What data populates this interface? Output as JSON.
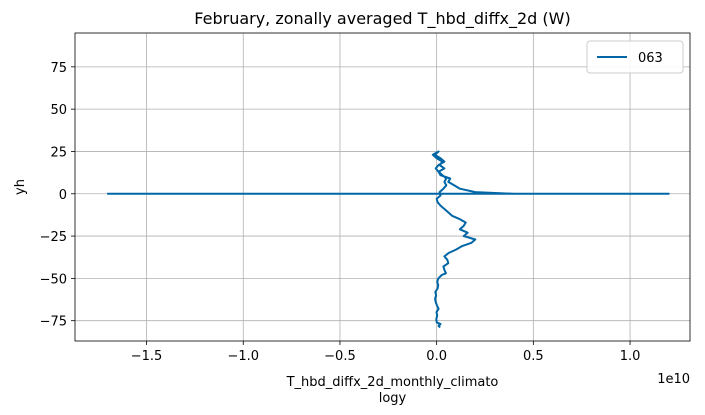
{
  "chart_data": {
    "type": "line",
    "title": "February, zonally averaged T_hbd_diffx_2d (W)",
    "xlabel": "T_hbd_diffx_2d_monthly_climato",
    "xlabel_line2": "logy",
    "ylabel": "yh",
    "x_offset_text": "1e10",
    "x_unit_scale": 10000000000,
    "xlim": [
      -18700000000.0,
      13100000000.0
    ],
    "ylim": [
      -87,
      95
    ],
    "xticks": [
      -15000000000.0,
      -10000000000.0,
      -5000000000.0,
      0,
      5000000000.0,
      10000000000.0
    ],
    "xtick_labels": [
      "−1.5",
      "−1.0",
      "−0.5",
      "0.0",
      "0.5",
      "1.0"
    ],
    "yticks": [
      -75,
      -50,
      -25,
      0,
      25,
      50,
      75
    ],
    "ytick_labels": [
      "−75",
      "−50",
      "−25",
      "0",
      "25",
      "50",
      "75"
    ],
    "grid": true,
    "legend_position": "top-right",
    "series": [
      {
        "name": "063",
        "color": "#0066a6",
        "x": [
          180000000.0,
          100000000.0,
          200000000.0,
          0.0,
          -20000000.0,
          30000000.0,
          -10000000.0,
          100000000.0,
          20000000.0,
          -50000000.0,
          -80000000.0,
          -30000000.0,
          -70000000.0,
          50000000.0,
          80000000.0,
          30000000.0,
          90000000.0,
          260000000.0,
          480000000.0,
          400000000.0,
          350000000.0,
          600000000.0,
          550000000.0,
          400000000.0,
          620000000.0,
          1000000000.0,
          1300000000.0,
          1800000000.0,
          2000000000.0,
          1400000000.0,
          1600000000.0,
          1200000000.0,
          1400000000.0,
          1500000000.0,
          1200000000.0,
          800000000.0,
          600000000.0,
          400000000.0,
          200000000.0,
          50000000.0,
          0.0,
          200000000.0,
          150000000.0,
          350000000.0,
          500000000.0,
          400000000.0,
          500000000.0,
          300000000.0,
          100000000.0,
          -50000000.0,
          100000000.0,
          400000000.0,
          200000000.0,
          -100000000.0,
          100000000.0,
          -200000000.0,
          0.0,
          300000000.0,
          150000000.0,
          400000000.0,
          100000000.0,
          200000000.0,
          700000000.0,
          600000000.0,
          900000000.0,
          1200000000.0,
          2000000000.0,
          4000000000.0,
          9000000000.0,
          11000000000.0,
          12000000000.0,
          3000000000.0,
          -17000000000.0,
          -15000000000.0,
          -10000000000.0,
          -10400000000.0,
          -11500000000.0,
          -10000000000.0,
          -10500000000.0,
          -11500000000.0,
          -9000000000.0,
          -8800000000.0,
          -7500000000.0,
          -7200000000.0,
          -9000000000.0,
          -7000000000.0,
          -8000000000.0,
          -9000000000.0,
          -10500000000.0,
          -12500000000.0,
          -6500000000.0,
          -8000000000.0,
          -8000000000.0,
          -10000000000.0,
          -8000000000.0,
          -6500000000.0,
          -9500000000.0,
          -9000000000.0,
          -10500000000.0,
          -6000000000.0,
          -5000000000.0,
          -3000000000.0,
          -500000000.0,
          0.0,
          -50000000.0,
          0.0,
          0.0
        ],
        "y": [
          -79,
          -78,
          -77,
          -76,
          -74,
          -72,
          -70,
          -68,
          -66,
          -64,
          -62,
          -60,
          -58,
          -56,
          -54,
          -52,
          -50,
          -48,
          -47,
          -45,
          -43,
          -41,
          -39,
          -37,
          -35,
          -33,
          -31,
          -29,
          -27,
          -25,
          -23,
          -21,
          -19,
          -17,
          -15,
          -13,
          -11,
          -9,
          -7,
          -5,
          -3,
          -1,
          1,
          3,
          5,
          7,
          9,
          11,
          13,
          15,
          17,
          19,
          21,
          23,
          25,
          23,
          21,
          19,
          17,
          15,
          13,
          11,
          9,
          7,
          5,
          3,
          1,
          0,
          0,
          0,
          0,
          0,
          0,
          0,
          0,
          0,
          0,
          0,
          0,
          0,
          0,
          0,
          0,
          0,
          0,
          0,
          0,
          0,
          0,
          0,
          0,
          0,
          0,
          0,
          0,
          0,
          0,
          0,
          0,
          0,
          0,
          0,
          0,
          0,
          0,
          0,
          0
        ]
      }
    ]
  }
}
